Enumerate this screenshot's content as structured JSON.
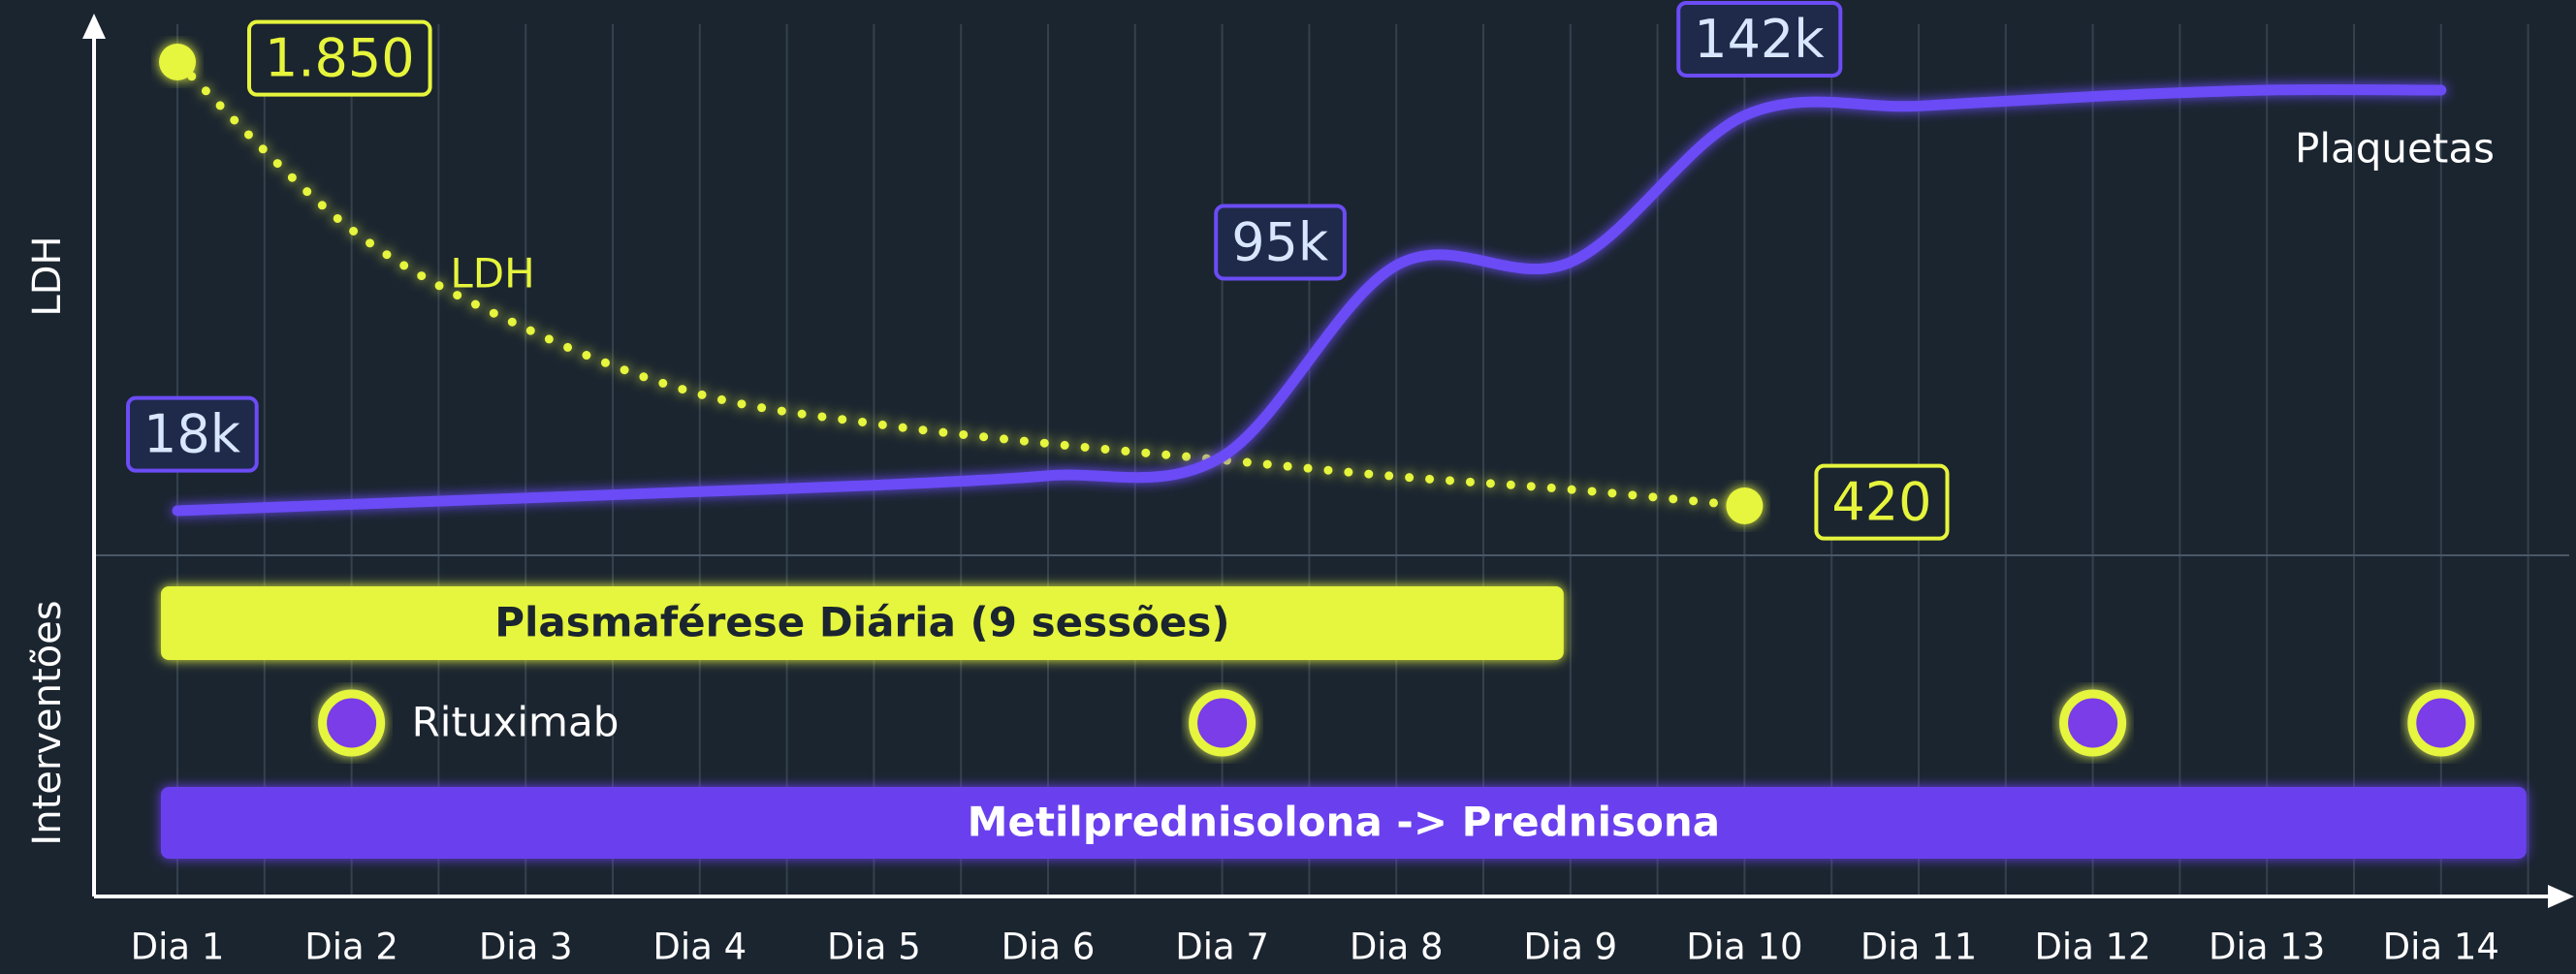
{
  "chart_data": {
    "type": "line",
    "y_label": "LDH",
    "categories": [
      "Dia 1",
      "Dia 2",
      "Dia 3",
      "Dia 4",
      "Dia 5",
      "Dia 6",
      "Dia 7",
      "Dia 8",
      "Dia 9",
      "Dia 10",
      "Dia 11",
      "Dia 12",
      "Dia 13",
      "Dia 14"
    ],
    "series": [
      {
        "name": "LDH",
        "color": "#e6f53c",
        "style": "dotted",
        "values": [
          1850,
          1310,
          992,
          780,
          685,
          621,
          568,
          515,
          473,
          420,
          null,
          null,
          null,
          null
        ],
        "value_labels": [
          "1.850",
          null,
          null,
          null,
          null,
          null,
          null,
          null,
          null,
          "420",
          null,
          null,
          null,
          null
        ]
      },
      {
        "name": "Plaquetas",
        "color": "#6b4cf5",
        "style": "solid",
        "values": [
          18000,
          20000,
          22000,
          24000,
          26000,
          29000,
          35000,
          95000,
          96000,
          142000,
          145000,
          148000,
          150000,
          150000
        ],
        "value_labels": [
          "18k",
          null,
          null,
          null,
          null,
          null,
          null,
          "95k",
          null,
          "142k",
          null,
          null,
          null,
          null
        ]
      }
    ],
    "interventions": {
      "label": "Interventões",
      "bars": [
        {
          "name": "Plasmaférese Diária (9 sessões)",
          "start": 1,
          "end": 9,
          "color": "#e6f53c"
        },
        {
          "name": "Metilprednisolona -> Prednisona",
          "start": 1,
          "end": 14,
          "color": "#6b40ee"
        }
      ],
      "doses": {
        "name": "Rituximab",
        "days": [
          2,
          7,
          12,
          14
        ],
        "color": "#7a3de8",
        "ring": "#e6f53c"
      }
    }
  }
}
